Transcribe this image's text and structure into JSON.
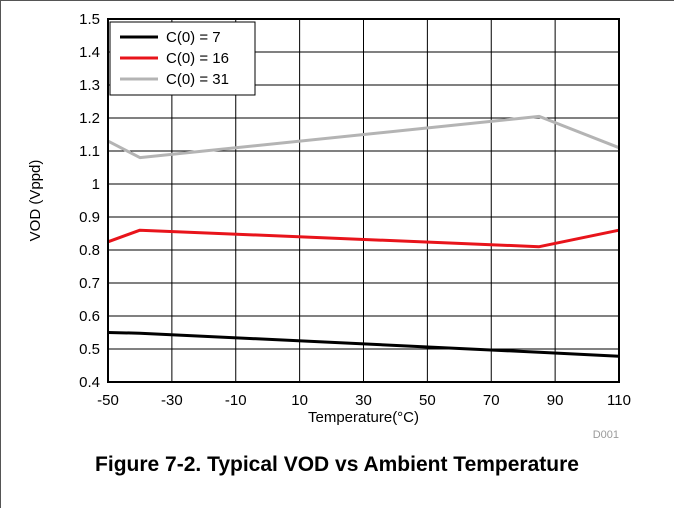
{
  "caption": "Figure 7-2. Typical VOD vs Ambient Temperature",
  "figure_code": "D001",
  "chart_data": {
    "type": "line",
    "xlabel": "Temperature(°C)",
    "ylabel": "VOD (Vppd)",
    "xlim": [
      -50,
      110
    ],
    "ylim": [
      0.4,
      1.5
    ],
    "xticks": [
      -50,
      -30,
      -10,
      10,
      30,
      50,
      70,
      90,
      110
    ],
    "yticks": [
      0.4,
      0.5,
      0.6,
      0.7,
      0.8,
      0.9,
      1,
      1.1,
      1.2,
      1.3,
      1.4,
      1.5
    ],
    "xtick_labels": [
      "-50",
      "-30",
      "-10",
      "10",
      "30",
      "50",
      "70",
      "90",
      "110"
    ],
    "ytick_labels": [
      "0.4",
      "0.5",
      "0.6",
      "0.7",
      "0.8",
      "0.9",
      "1",
      "1.1",
      "1.2",
      "1.3",
      "1.4",
      "1.5"
    ],
    "grid": true,
    "legend_position": "top-left",
    "series": [
      {
        "name": "C(0) = 7",
        "color": "#000000",
        "x": [
          -50,
          -40,
          85,
          110
        ],
        "y": [
          0.55,
          0.548,
          0.49,
          0.478
        ]
      },
      {
        "name": "C(0) = 16",
        "color": "#e8141b",
        "x": [
          -50,
          -40,
          85,
          110
        ],
        "y": [
          0.825,
          0.86,
          0.81,
          0.86
        ]
      },
      {
        "name": "C(0) = 31",
        "color": "#b4b4b4",
        "x": [
          -50,
          -40,
          85,
          110
        ],
        "y": [
          1.13,
          1.08,
          1.205,
          1.11
        ]
      }
    ]
  }
}
